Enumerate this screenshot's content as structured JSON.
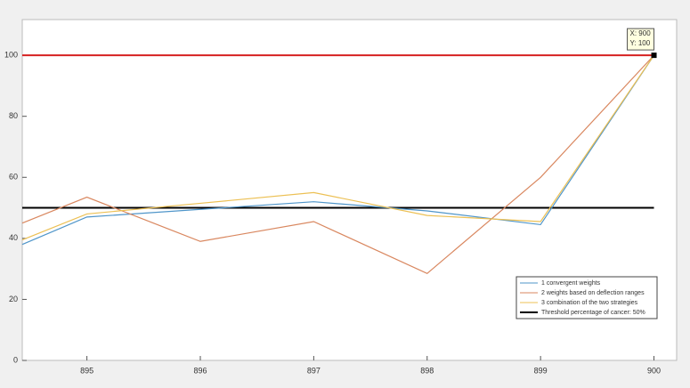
{
  "chart_data": {
    "type": "line",
    "x": [
      894.43,
      895,
      896,
      897,
      898,
      899,
      900
    ],
    "series": [
      {
        "name": "1 convergent weights",
        "color": "#4f95c9",
        "values": [
          38,
          47,
          49.5,
          52,
          49,
          44.5,
          100
        ]
      },
      {
        "name": "2 weights based on deflection ranges",
        "color": "#d9875f",
        "values": [
          45,
          53.5,
          39,
          45.5,
          28.5,
          60,
          100
        ]
      },
      {
        "name": "3 combination of the two strategies",
        "color": "#ecc054",
        "values": [
          39.5,
          48,
          51.5,
          55,
          47.5,
          45.5,
          100
        ]
      }
    ],
    "reference_lines": [
      {
        "name": "Threshold percentage of cancer: 50%",
        "value": 50,
        "color": "#000000"
      },
      {
        "value": 100,
        "color": "#d62020"
      }
    ],
    "datatip": {
      "x": 900,
      "y": 100,
      "lines": [
        "X: 900",
        "Y: 100"
      ]
    },
    "xlim": [
      894.43,
      900.2
    ],
    "xticks": [
      895,
      896,
      897,
      898,
      899,
      900
    ],
    "ylim": [
      0,
      111.7
    ],
    "yticks": [
      0,
      20,
      40,
      60,
      80,
      100
    ],
    "legend": "lower right"
  }
}
